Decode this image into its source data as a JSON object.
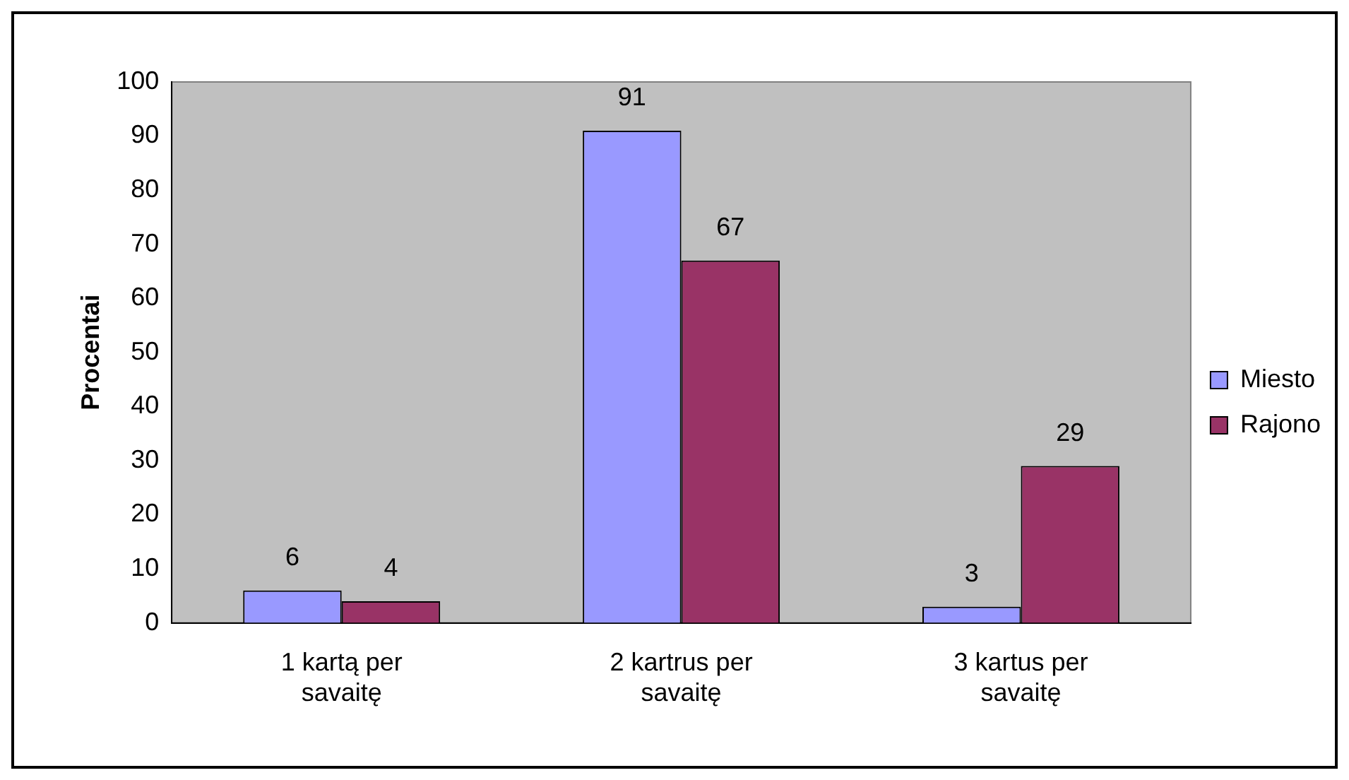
{
  "chart_data": {
    "type": "bar",
    "ylabel": "Procentai",
    "categories": [
      "1 kartą per savaitę",
      "2 kartrus per savaitę",
      "3 kartus per savaitę"
    ],
    "series": [
      {
        "name": "Miesto",
        "color": "#9999ff",
        "values": [
          6,
          91,
          3
        ]
      },
      {
        "name": "Rajono",
        "color": "#993366",
        "values": [
          4,
          67,
          29
        ]
      }
    ],
    "ylim": [
      0,
      100
    ],
    "yticks": [
      0,
      10,
      20,
      30,
      40,
      50,
      60,
      70,
      80,
      90,
      100
    ],
    "grid": false,
    "legend": "right",
    "data_labels": true
  }
}
